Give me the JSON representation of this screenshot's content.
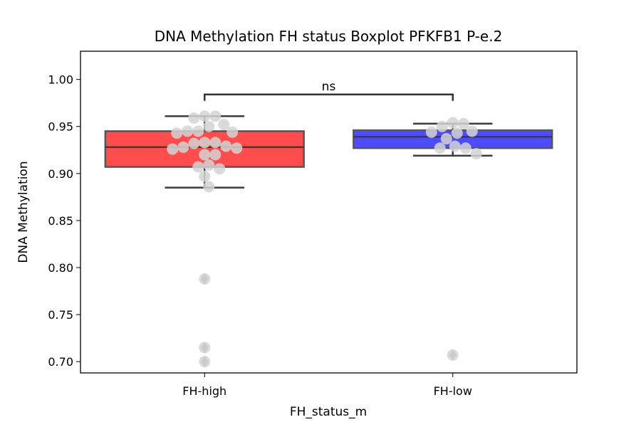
{
  "chart_data": {
    "type": "box",
    "title": "DNA Methylation FH status Boxplot PFKFB1 P-e.2",
    "xlabel": "FH_status_m",
    "ylabel": "DNA Methylation",
    "ylim": [
      0.688,
      1.03
    ],
    "yticks": [
      0.7,
      0.75,
      0.8,
      0.85,
      0.9,
      0.95,
      1.0
    ],
    "ytick_labels": [
      "0.70",
      "0.75",
      "0.80",
      "0.85",
      "0.90",
      "0.95",
      "1.00"
    ],
    "grid": false,
    "categories": [
      "FH-high",
      "FH-low"
    ],
    "boxes": [
      {
        "category": "FH-high",
        "color": "#ff4d4d",
        "q1": 0.907,
        "median": 0.928,
        "q3": 0.945,
        "whisker_low": 0.885,
        "whisker_high": 0.961,
        "outliers": [
          0.788,
          0.715,
          0.7
        ],
        "points": [
          0.961,
          0.959,
          0.961,
          0.952,
          0.95,
          0.945,
          0.943,
          0.944,
          0.945,
          0.933,
          0.933,
          0.932,
          0.929,
          0.927,
          0.926,
          0.928,
          0.92,
          0.92,
          0.909,
          0.907,
          0.905,
          0.897,
          0.886,
          0.788,
          0.715,
          0.7
        ]
      },
      {
        "category": "FH-low",
        "color": "#4d4dff",
        "q1": 0.927,
        "median": 0.939,
        "q3": 0.946,
        "whisker_low": 0.919,
        "whisker_high": 0.953,
        "outliers": [
          0.707
        ],
        "points": [
          0.954,
          0.953,
          0.95,
          0.944,
          0.943,
          0.945,
          0.937,
          0.929,
          0.927,
          0.927,
          0.921,
          0.707
        ]
      }
    ],
    "annotations": [
      {
        "text": "ns",
        "between": [
          "FH-high",
          "FH-low"
        ],
        "y": 0.984
      }
    ],
    "colors": {
      "box_edge": "#555555",
      "whisker": "#3c3c3c",
      "point": "#d3d3d3",
      "outlier": "#9a9a9a"
    }
  }
}
